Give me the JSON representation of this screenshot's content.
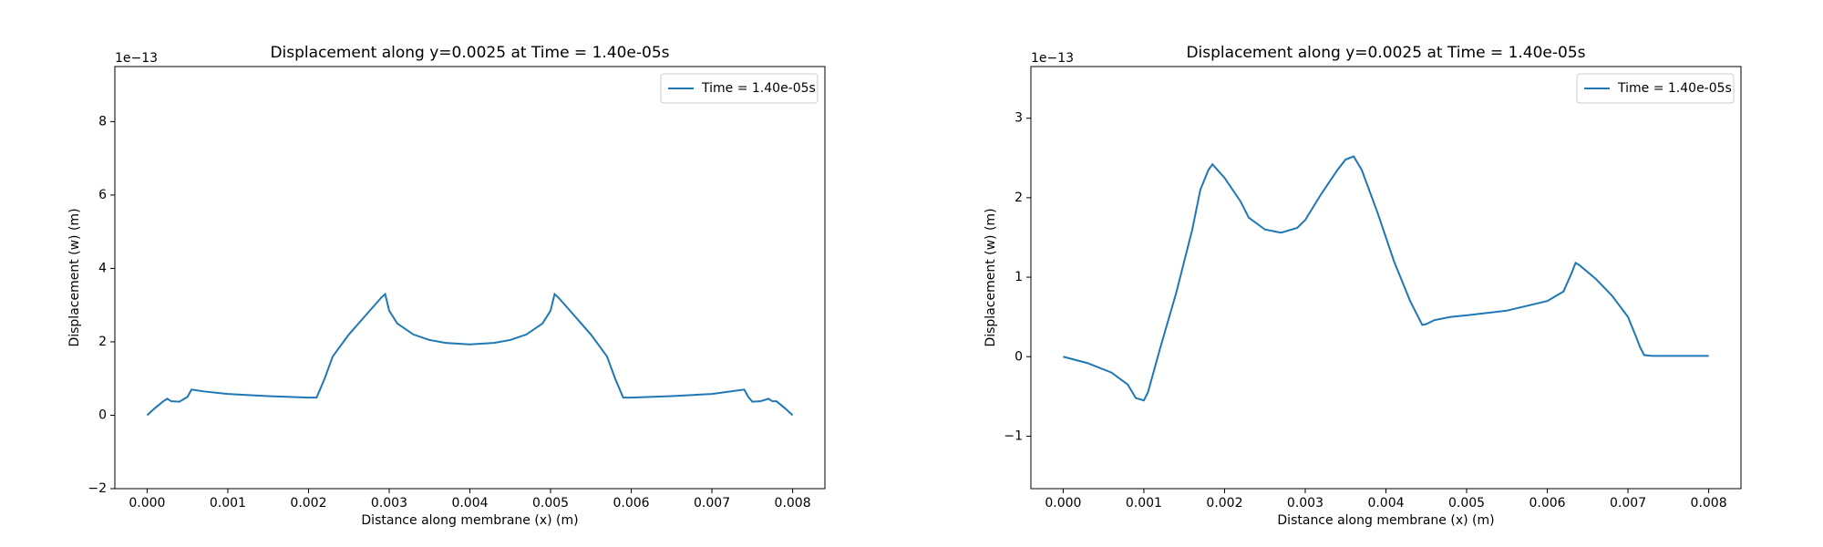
{
  "chart_data": [
    {
      "type": "line",
      "title": "Displacement along y=0.0025 at Time = 1.40e-05s",
      "xlabel": "Distance along membrane (x) (m)",
      "ylabel": "Displacement (w) (m)",
      "y_scale_label": "1e−13",
      "x": [
        0,
        0.0001,
        0.0002,
        0.00025,
        0.0003,
        0.0004,
        0.0005,
        0.00055,
        0.0007,
        0.001,
        0.0015,
        0.002,
        0.0021,
        0.0022,
        0.0023,
        0.0025,
        0.0027,
        0.0029,
        0.00295,
        0.003,
        0.0031,
        0.0033,
        0.0035,
        0.0037,
        0.004,
        0.0043,
        0.0045,
        0.0047,
        0.0049,
        0.005,
        0.00505,
        0.0051,
        0.0053,
        0.0055,
        0.0057,
        0.0058,
        0.0059,
        0.006,
        0.0065,
        0.007,
        0.0074,
        0.00745,
        0.0075,
        0.0076,
        0.0077,
        0.00775,
        0.0078,
        0.0079,
        0.008
      ],
      "series": [
        {
          "name": "Time = 1.40e-05s",
          "color": "#1f77b4",
          "values": [
            0,
            0.2,
            0.38,
            0.45,
            0.38,
            0.37,
            0.5,
            0.7,
            0.65,
            0.58,
            0.52,
            0.48,
            0.48,
            1.0,
            1.6,
            2.2,
            2.7,
            3.2,
            3.3,
            2.85,
            2.5,
            2.2,
            2.05,
            1.97,
            1.93,
            1.97,
            2.05,
            2.2,
            2.5,
            2.85,
            3.3,
            3.2,
            2.7,
            2.2,
            1.6,
            1.0,
            0.48,
            0.48,
            0.52,
            0.58,
            0.7,
            0.5,
            0.37,
            0.38,
            0.45,
            0.38,
            0.38,
            0.2,
            0
          ]
        }
      ],
      "xlim": [
        -0.0004,
        0.0084
      ],
      "ylim": [
        -2,
        9.5
      ],
      "xticks": [
        {
          "value": 0,
          "label": "0.000"
        },
        {
          "value": 0.001,
          "label": "0.001"
        },
        {
          "value": 0.002,
          "label": "0.002"
        },
        {
          "value": 0.003,
          "label": "0.003"
        },
        {
          "value": 0.004,
          "label": "0.004"
        },
        {
          "value": 0.005,
          "label": "0.005"
        },
        {
          "value": 0.006,
          "label": "0.006"
        },
        {
          "value": 0.007,
          "label": "0.007"
        },
        {
          "value": 0.008,
          "label": "0.008"
        }
      ],
      "yticks": [
        {
          "value": -2,
          "label": "−2"
        },
        0,
        2,
        4,
        6,
        8
      ],
      "legend": "upper right",
      "grid": false
    },
    {
      "type": "line",
      "title": "Displacement along y=0.0025 at Time = 1.40e-05s",
      "xlabel": "Distance along membrane (x) (m)",
      "ylabel": "Displacement (w) (m)",
      "y_scale_label": "1e−13",
      "x": [
        0,
        0.0003,
        0.0006,
        0.0008,
        0.0009,
        0.001,
        0.00105,
        0.0012,
        0.0014,
        0.0016,
        0.0017,
        0.0018,
        0.00185,
        0.002,
        0.0022,
        0.0023,
        0.0025,
        0.0027,
        0.0029,
        0.003,
        0.0032,
        0.0034,
        0.0035,
        0.0036,
        0.0037,
        0.0039,
        0.0041,
        0.0043,
        0.0044,
        0.00445,
        0.0045,
        0.0046,
        0.0048,
        0.005,
        0.0055,
        0.006,
        0.0062,
        0.0063,
        0.00635,
        0.0064,
        0.0066,
        0.0068,
        0.007,
        0.0071,
        0.00715,
        0.0072,
        0.0073,
        0.008
      ],
      "series": [
        {
          "name": "Time = 1.40e-05s",
          "color": "#1f77b4",
          "values": [
            0,
            -0.08,
            -0.2,
            -0.35,
            -0.52,
            -0.55,
            -0.45,
            0.1,
            0.8,
            1.6,
            2.1,
            2.35,
            2.42,
            2.25,
            1.95,
            1.75,
            1.6,
            1.56,
            1.62,
            1.72,
            2.05,
            2.35,
            2.48,
            2.52,
            2.35,
            1.8,
            1.2,
            0.7,
            0.5,
            0.4,
            0.41,
            0.46,
            0.5,
            0.52,
            0.58,
            0.7,
            0.82,
            1.05,
            1.18,
            1.15,
            0.98,
            0.77,
            0.5,
            0.25,
            0.12,
            0.02,
            0.01,
            0.01
          ]
        }
      ],
      "xlim": [
        -0.0004,
        0.0084
      ],
      "ylim": [
        -1.66,
        3.65
      ],
      "xticks": [
        {
          "value": 0,
          "label": "0.000"
        },
        {
          "value": 0.001,
          "label": "0.001"
        },
        {
          "value": 0.002,
          "label": "0.002"
        },
        {
          "value": 0.003,
          "label": "0.003"
        },
        {
          "value": 0.004,
          "label": "0.004"
        },
        {
          "value": 0.005,
          "label": "0.005"
        },
        {
          "value": 0.006,
          "label": "0.006"
        },
        {
          "value": 0.007,
          "label": "0.007"
        },
        {
          "value": 0.008,
          "label": "0.008"
        }
      ],
      "yticks": [
        {
          "value": -1,
          "label": "−1"
        },
        0,
        1,
        2,
        3
      ],
      "legend": "upper right",
      "grid": false
    }
  ]
}
